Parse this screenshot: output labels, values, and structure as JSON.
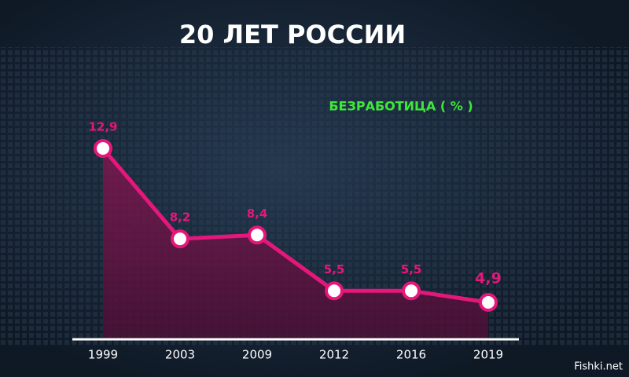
{
  "chart_data": {
    "type": "line",
    "title": "20 ЛЕТ РОССИИ",
    "subtitle": "БЕЗРАБОТИЦА ( % )",
    "categories": [
      "1999",
      "2003",
      "2009",
      "2012",
      "2016",
      "2019"
    ],
    "values": [
      12.9,
      8.2,
      8.4,
      5.5,
      5.5,
      4.9
    ],
    "value_labels": [
      "12,9",
      "8,2",
      "8,4",
      "5,5",
      "5,5",
      "4,9"
    ],
    "color": "#e5177a",
    "area": true
  },
  "watermark": "Fishki.net"
}
